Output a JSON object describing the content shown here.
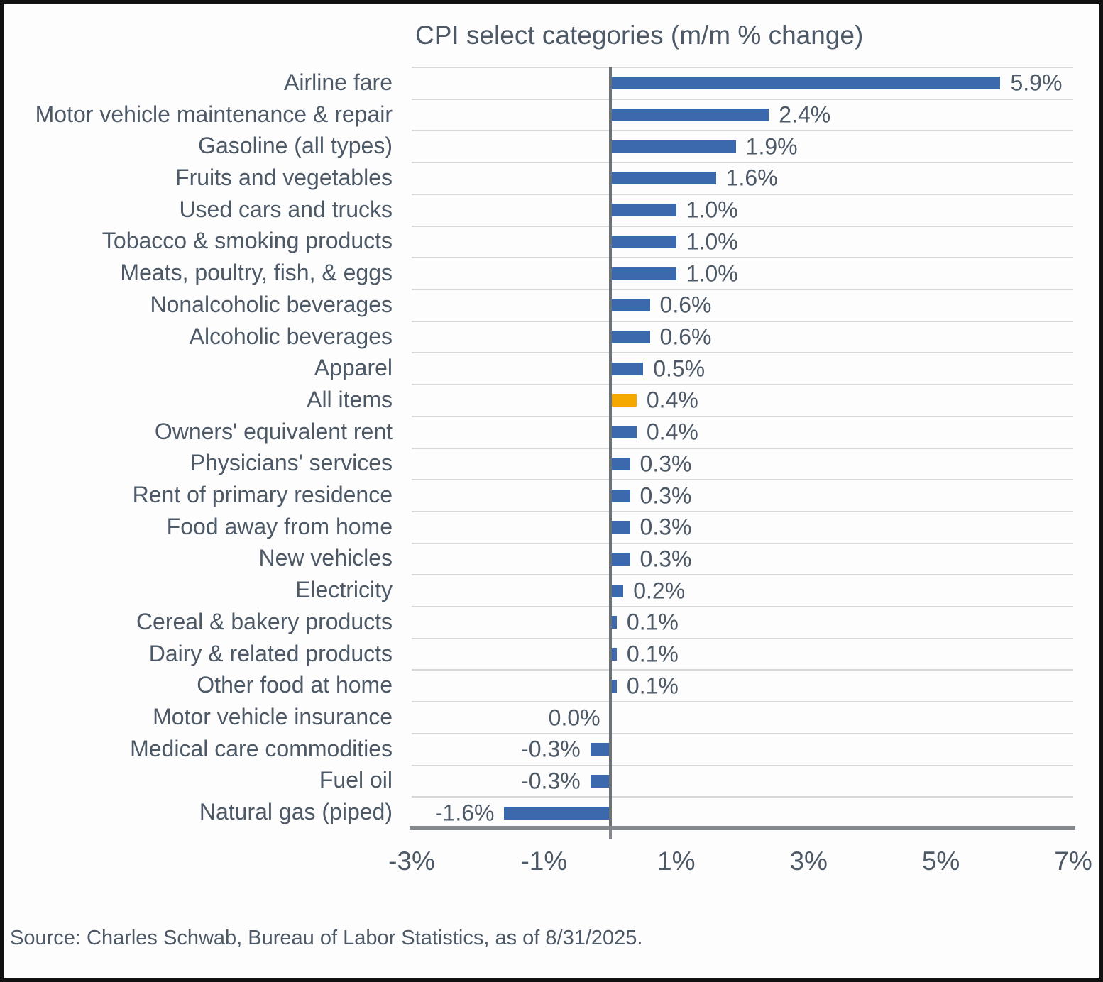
{
  "title": "CPI select categories (m/m % change)",
  "source_note": "Source: Charles Schwab, Bureau of Labor Statistics, as of  8/31/2025.",
  "colors": {
    "bar_default": "#3C69AE",
    "bar_highlight": "#F5A800",
    "text": "#4D5966",
    "gridline": "#D7D7D7",
    "zero_line": "#6B7177",
    "axis_line": "#84888C"
  },
  "chart_data": {
    "type": "bar",
    "orientation": "horizontal",
    "title": "CPI select categories (m/m % change)",
    "xlabel": "",
    "ylabel": "",
    "xlim": [
      -3,
      7
    ],
    "x_tick_values": [
      -3,
      -1,
      1,
      3,
      5,
      7
    ],
    "x_tick_labels": [
      "-3%",
      "-1%",
      "1%",
      "3%",
      "5%",
      "7%"
    ],
    "grid": true,
    "legend": false,
    "highlight_category": "All items",
    "highlight_index": 10,
    "categories": [
      "Airline fare",
      "Motor vehicle maintenance & repair",
      "Gasoline (all types)",
      "Fruits and vegetables",
      "Used cars and trucks",
      "Tobacco & smoking products",
      "Meats, poultry, fish, & eggs",
      "Nonalcoholic beverages",
      "Alcoholic beverages",
      "Apparel",
      "All items",
      "Owners' equivalent rent",
      "Physicians' services",
      "Rent of primary residence",
      "Food away from home",
      "New vehicles",
      "Electricity",
      "Cereal & bakery products",
      "Dairy & related products",
      "Other food at home",
      "Motor vehicle insurance",
      "Medical care commodities",
      "Fuel oil",
      "Natural gas (piped)"
    ],
    "values": [
      5.9,
      2.4,
      1.9,
      1.6,
      1.0,
      1.0,
      1.0,
      0.6,
      0.6,
      0.5,
      0.4,
      0.4,
      0.3,
      0.3,
      0.3,
      0.3,
      0.2,
      0.1,
      0.1,
      0.1,
      0.0,
      -0.3,
      -0.3,
      -1.6
    ],
    "data_labels": [
      "5.9%",
      "2.4%",
      "1.9%",
      "1.6%",
      "1.0%",
      "1.0%",
      "1.0%",
      "0.6%",
      "0.6%",
      "0.5%",
      "0.4%",
      "0.4%",
      "0.3%",
      "0.3%",
      "0.3%",
      "0.3%",
      "0.2%",
      "0.1%",
      "0.1%",
      "0.1%",
      "0.0%",
      "-0.3%",
      "-0.3%",
      "-1.6%"
    ]
  }
}
